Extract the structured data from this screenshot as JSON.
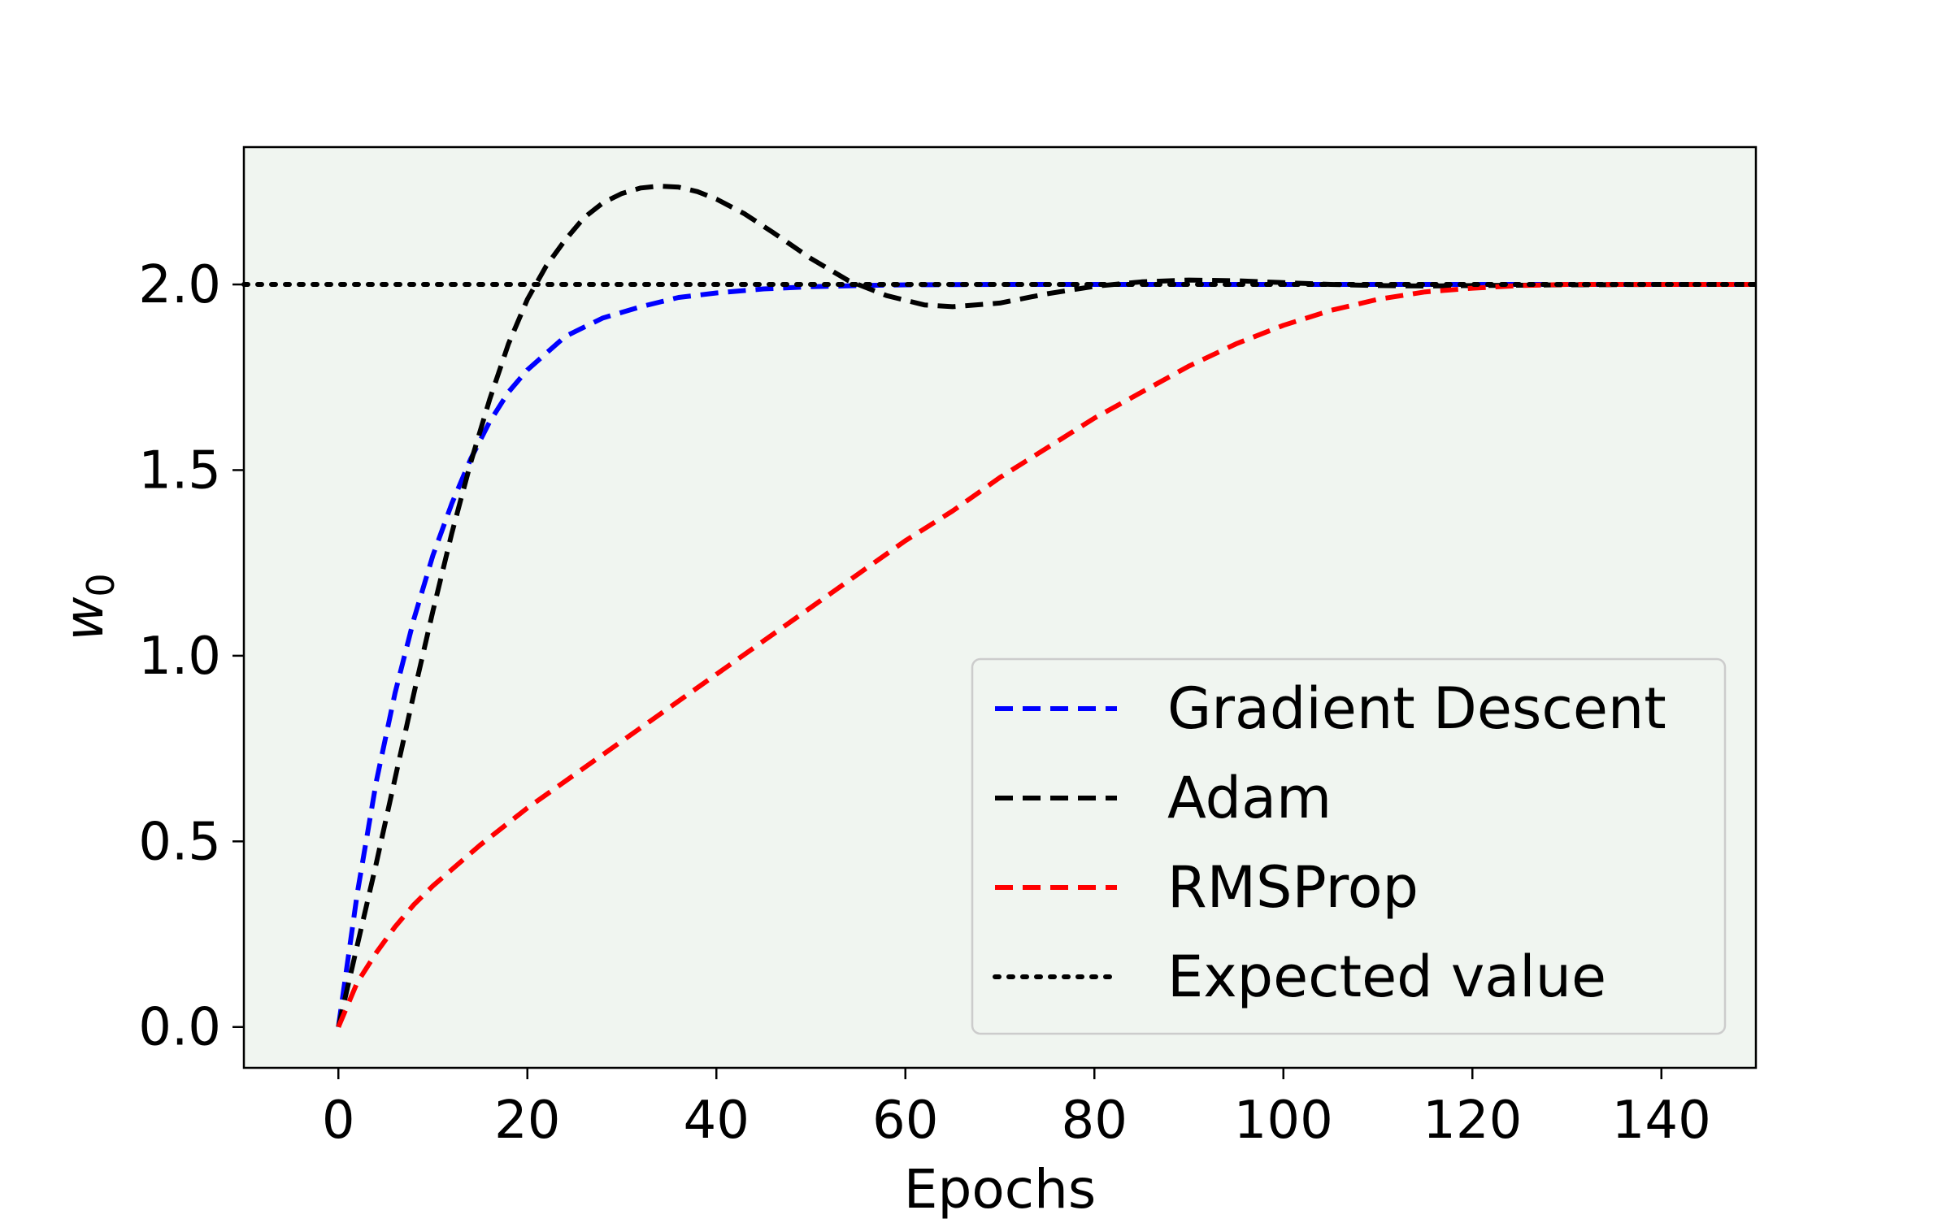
{
  "chart_data": {
    "type": "line",
    "title": "",
    "xlabel": "Epochs",
    "ylabel": "w",
    "ylabel_subscript": "0",
    "xlim": [
      -10,
      150
    ],
    "ylim": [
      -0.11,
      2.37
    ],
    "xticks": [
      0,
      20,
      40,
      60,
      80,
      100,
      120,
      140
    ],
    "yticks": [
      0.0,
      0.5,
      1.0,
      1.5,
      2.0
    ],
    "xtick_labels": [
      "0",
      "20",
      "40",
      "60",
      "80",
      "100",
      "120",
      "140"
    ],
    "ytick_labels": [
      "0.0",
      "0.5",
      "1.0",
      "1.5",
      "2.0"
    ],
    "grid": false,
    "legend_position": "lower-right",
    "plot_background": "#f0f5f0",
    "series": [
      {
        "name": "Gradient Descent",
        "color": "#0000ff",
        "style": "dashed",
        "x": [
          0,
          2,
          4,
          6,
          8,
          10,
          12,
          14,
          16,
          18,
          20,
          24,
          28,
          32,
          36,
          40,
          45,
          50,
          55,
          60,
          70,
          80,
          100,
          120,
          150
        ],
        "y": [
          0.0,
          0.36,
          0.66,
          0.9,
          1.1,
          1.27,
          1.41,
          1.53,
          1.63,
          1.71,
          1.77,
          1.86,
          1.91,
          1.94,
          1.965,
          1.977,
          1.988,
          1.994,
          1.997,
          1.999,
          2.0,
          2.0,
          2.0,
          2.0,
          2.0
        ]
      },
      {
        "name": "Adam",
        "color": "#000000",
        "style": "dashed",
        "x": [
          0,
          2,
          4,
          6,
          8,
          10,
          12,
          14,
          16,
          18,
          20,
          22,
          24,
          26,
          28,
          30,
          32,
          34,
          36,
          38,
          40,
          43,
          46,
          50,
          54,
          58,
          62,
          65,
          70,
          75,
          80,
          85,
          90,
          95,
          100,
          105,
          110,
          115,
          120,
          130,
          140,
          150
        ],
        "y": [
          0.0,
          0.22,
          0.44,
          0.67,
          0.9,
          1.12,
          1.33,
          1.52,
          1.69,
          1.84,
          1.96,
          2.05,
          2.12,
          2.18,
          2.22,
          2.245,
          2.26,
          2.265,
          2.262,
          2.25,
          2.23,
          2.19,
          2.14,
          2.07,
          2.01,
          1.97,
          1.945,
          1.94,
          1.95,
          1.975,
          1.995,
          2.007,
          2.012,
          2.01,
          2.005,
          2.0,
          1.997,
          1.996,
          1.997,
          1.999,
          2.0,
          2.0
        ]
      },
      {
        "name": "RMSProp",
        "color": "#ff0000",
        "style": "dashed",
        "x": [
          0,
          2,
          4,
          6,
          8,
          10,
          15,
          20,
          25,
          30,
          35,
          40,
          45,
          50,
          55,
          60,
          65,
          70,
          75,
          80,
          85,
          90,
          95,
          100,
          105,
          110,
          115,
          120,
          125,
          130,
          135,
          140,
          150
        ],
        "y": [
          0.0,
          0.12,
          0.2,
          0.27,
          0.33,
          0.38,
          0.49,
          0.59,
          0.68,
          0.77,
          0.86,
          0.95,
          1.04,
          1.13,
          1.22,
          1.31,
          1.39,
          1.48,
          1.56,
          1.64,
          1.71,
          1.78,
          1.84,
          1.89,
          1.93,
          1.96,
          1.98,
          1.99,
          1.997,
          2.0,
          2.0,
          2.0,
          2.0
        ]
      },
      {
        "name": "Expected value",
        "color": "#000000",
        "style": "dotted",
        "x": [
          -10,
          150
        ],
        "y": [
          2.0,
          2.0
        ]
      }
    ]
  }
}
